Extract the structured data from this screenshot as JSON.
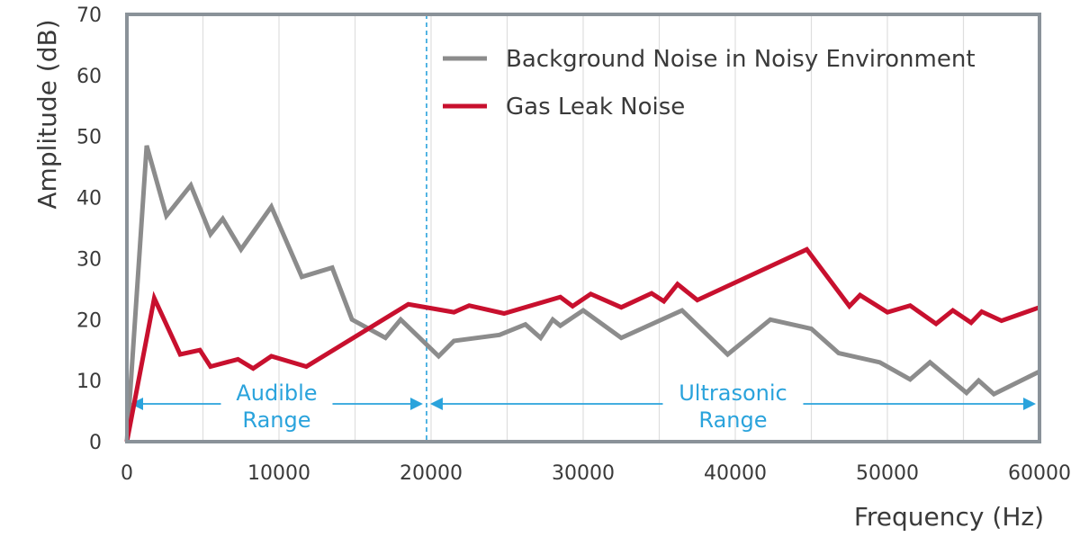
{
  "chart_data": {
    "type": "line",
    "xlabel": "Frequency (Hz)",
    "ylabel": "Amplitude (dB)",
    "xlim": [
      0,
      60000
    ],
    "ylim": [
      0,
      70
    ],
    "x_ticks": [
      "0",
      "10000",
      "20000",
      "30000",
      "40000",
      "50000",
      "60000"
    ],
    "y_ticks": [
      "0",
      "10",
      "20",
      "30",
      "40",
      "50",
      "60",
      "70"
    ],
    "grid": "vertical",
    "legend_position": "top-right",
    "series": [
      {
        "name": "Background Noise in Noisy Environment",
        "color": "#8c8c8c",
        "points": [
          [
            0,
            0
          ],
          [
            1300,
            48.5
          ],
          [
            2600,
            37
          ],
          [
            4200,
            42
          ],
          [
            5500,
            34
          ],
          [
            6300,
            36.5
          ],
          [
            7500,
            31.5
          ],
          [
            9500,
            38.5
          ],
          [
            11500,
            27
          ],
          [
            13500,
            28.5
          ],
          [
            14800,
            20
          ],
          [
            17000,
            17
          ],
          [
            18000,
            20
          ],
          [
            20500,
            14
          ],
          [
            21500,
            16.5
          ],
          [
            24500,
            17.5
          ],
          [
            26200,
            19.2
          ],
          [
            27200,
            17
          ],
          [
            28000,
            20
          ],
          [
            28500,
            19
          ],
          [
            30000,
            21.5
          ],
          [
            32500,
            17
          ],
          [
            36500,
            21.5
          ],
          [
            39500,
            14.3
          ],
          [
            42300,
            20
          ],
          [
            45000,
            18.5
          ],
          [
            46800,
            14.5
          ],
          [
            49500,
            13
          ],
          [
            51500,
            10.2
          ],
          [
            52800,
            13
          ],
          [
            55200,
            8
          ],
          [
            56000,
            10
          ],
          [
            57000,
            7.8
          ],
          [
            60000,
            11.5
          ]
        ]
      },
      {
        "name": "Gas Leak Noise",
        "color": "#c8102e",
        "points": [
          [
            0,
            0
          ],
          [
            1800,
            23.5
          ],
          [
            3500,
            14.3
          ],
          [
            4800,
            15
          ],
          [
            5500,
            12.3
          ],
          [
            7300,
            13.5
          ],
          [
            8300,
            12
          ],
          [
            9500,
            14
          ],
          [
            11800,
            12.3
          ],
          [
            18500,
            22.5
          ],
          [
            21500,
            21.2
          ],
          [
            22500,
            22.3
          ],
          [
            24800,
            21
          ],
          [
            28500,
            23.7
          ],
          [
            29300,
            22.2
          ],
          [
            30500,
            24.2
          ],
          [
            32500,
            22
          ],
          [
            34500,
            24.3
          ],
          [
            35300,
            23
          ],
          [
            36200,
            25.8
          ],
          [
            37500,
            23.2
          ],
          [
            44700,
            31.5
          ],
          [
            47500,
            22.2
          ],
          [
            48200,
            24
          ],
          [
            50000,
            21.2
          ],
          [
            51500,
            22.3
          ],
          [
            53200,
            19.3
          ],
          [
            54300,
            21.5
          ],
          [
            55500,
            19.5
          ],
          [
            56200,
            21.3
          ],
          [
            57500,
            19.8
          ],
          [
            60000,
            22
          ]
        ]
      }
    ],
    "divider_x": 19700,
    "annotations": [
      {
        "lines": [
          "Audible",
          "Range"
        ],
        "from": 0,
        "to": 19700
      },
      {
        "lines": [
          "Ultrasonic",
          "Range"
        ],
        "from": 19700,
        "to": 60000
      }
    ],
    "colors": {
      "axis": "#8a9299",
      "grid": "#dedede",
      "range": "#2aa3dc",
      "text": "#3a3a3a"
    }
  }
}
